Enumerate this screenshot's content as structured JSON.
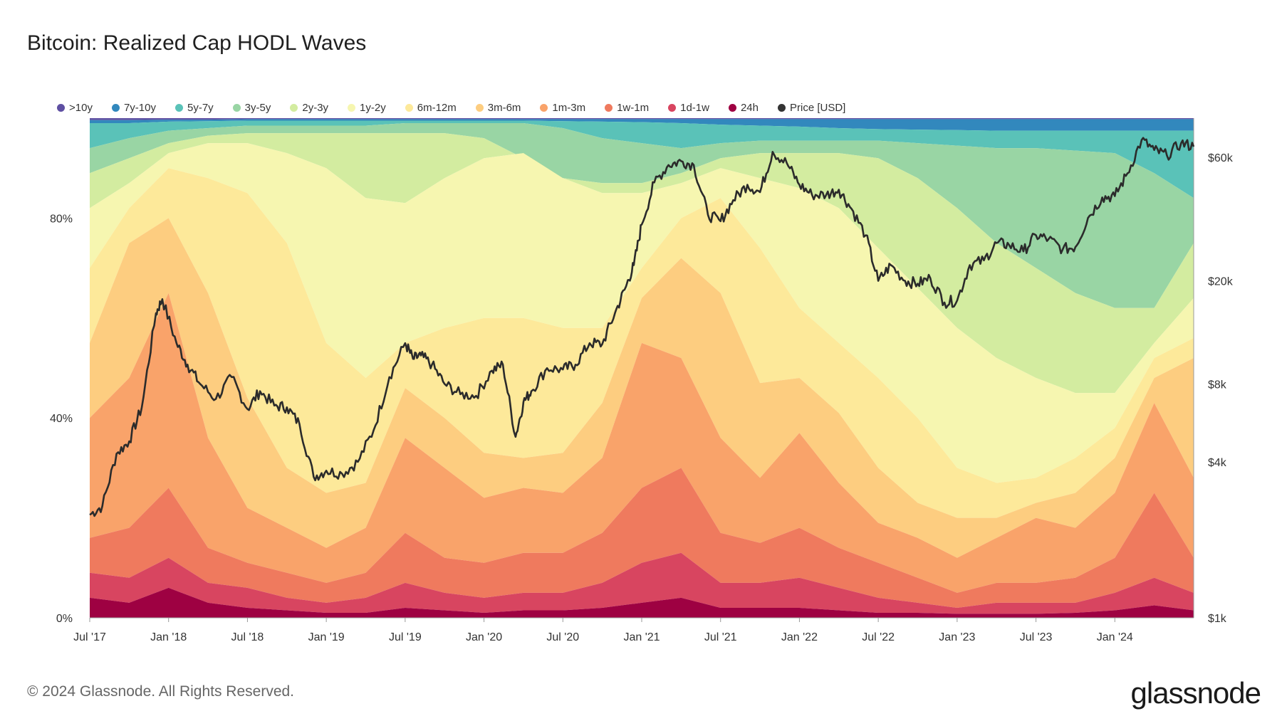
{
  "title": "Bitcoin: Realized Cap HODL Waves",
  "footer": "© 2024 Glassnode. All Rights Reserved.",
  "brand": "glassnode",
  "legend": [
    {
      "label": ">10y",
      "color": "#5e4fa2"
    },
    {
      "label": "7y-10y",
      "color": "#3288bd"
    },
    {
      "label": "5y-7y",
      "color": "#5ac2b8"
    },
    {
      "label": "3y-5y",
      "color": "#99d5a4"
    },
    {
      "label": "2y-3y",
      "color": "#d3eca0"
    },
    {
      "label": "1y-2y",
      "color": "#f6f6b0"
    },
    {
      "label": "6m-12m",
      "color": "#fde99a"
    },
    {
      "label": "3m-6m",
      "color": "#fdcd80"
    },
    {
      "label": "1m-3m",
      "color": "#f9a36a"
    },
    {
      "label": "1w-1m",
      "color": "#ef7a5e"
    },
    {
      "label": "1d-1w",
      "color": "#d84560"
    },
    {
      "label": "24h",
      "color": "#9e0142"
    },
    {
      "label": "Price [USD]",
      "color": "#333333"
    }
  ],
  "chart_data": {
    "type": "area",
    "stacked": true,
    "title": "Bitcoin: Realized Cap HODL Waves",
    "x_ticks": [
      "Jul '17",
      "Jan '18",
      "Jul '18",
      "Jan '19",
      "Jul '19",
      "Jan '20",
      "Jul '20",
      "Jan '21",
      "Jul '21",
      "Jan '22",
      "Jul '22",
      "Jan '23",
      "Jul '23",
      "Jan '24"
    ],
    "y_left_ticks": [
      "0%",
      "40%",
      "80%"
    ],
    "y_left_range": [
      0,
      100
    ],
    "y_right_ticks": [
      "$1k",
      "$4k",
      "$8k",
      "$20k",
      "$60k"
    ],
    "y_right_tick_values": [
      1000,
      4000,
      8000,
      20000,
      60000
    ],
    "y_right_scale": "log",
    "x_start": 2017.5,
    "x_end": 2024.5,
    "legend_position": "top-left",
    "series_order_bottom_to_top": [
      "24h",
      "1d-1w",
      "1w-1m",
      "1m-3m",
      "3m-6m",
      "6m-12m",
      "1y-2y",
      "2y-3y",
      "3y-5y",
      "5y-7y",
      "7y-10y",
      ">10y"
    ],
    "x": [
      2017.5,
      2017.75,
      2018.0,
      2018.25,
      2018.5,
      2018.75,
      2019.0,
      2019.25,
      2019.5,
      2019.75,
      2020.0,
      2020.25,
      2020.5,
      2020.75,
      2021.0,
      2021.25,
      2021.5,
      2021.75,
      2022.0,
      2022.25,
      2022.5,
      2022.75,
      2023.0,
      2023.25,
      2023.5,
      2023.75,
      2024.0,
      2024.25,
      2024.5
    ],
    "cumulative_percent": [
      {
        "name": "24h",
        "values": [
          4,
          3,
          6,
          3,
          2,
          1.5,
          1,
          1,
          2,
          1.5,
          1,
          1.5,
          1.5,
          2,
          3,
          4,
          2,
          2,
          2,
          1.5,
          1,
          1,
          0.8,
          0.8,
          0.8,
          1,
          1.5,
          2.5,
          1.5
        ]
      },
      {
        "name": "1d-1w",
        "values": [
          9,
          8,
          12,
          7,
          6,
          4,
          3,
          4,
          7,
          5,
          4,
          5,
          5,
          7,
          11,
          13,
          7,
          7,
          8,
          6,
          4,
          3,
          2,
          3,
          3,
          3,
          5,
          8,
          5
        ]
      },
      {
        "name": "1w-1m",
        "values": [
          16,
          18,
          26,
          14,
          11,
          9,
          7,
          9,
          17,
          12,
          11,
          13,
          13,
          17,
          26,
          30,
          17,
          15,
          18,
          14,
          11,
          8,
          5,
          7,
          7,
          8,
          12,
          25,
          12
        ]
      },
      {
        "name": "1m-3m",
        "values": [
          40,
          48,
          65,
          36,
          22,
          18,
          14,
          18,
          36,
          30,
          24,
          26,
          25,
          32,
          55,
          52,
          36,
          28,
          37,
          27,
          19,
          16,
          12,
          16,
          20,
          18,
          25,
          43,
          28
        ]
      },
      {
        "name": "3m-6m",
        "values": [
          55,
          75,
          80,
          65,
          44,
          30,
          25,
          27,
          46,
          40,
          33,
          32,
          33,
          43,
          64,
          72,
          65,
          47,
          48,
          41,
          30,
          23,
          20,
          20,
          23,
          25,
          32,
          48,
          52
        ]
      },
      {
        "name": "6m-12m",
        "values": [
          70,
          82,
          90,
          88,
          85,
          75,
          55,
          48,
          55,
          58,
          60,
          60,
          58,
          58,
          70,
          80,
          84,
          74,
          62,
          55,
          48,
          40,
          30,
          27,
          28,
          32,
          38,
          52,
          56
        ]
      },
      {
        "name": "1y-2y",
        "values": [
          82,
          87,
          93,
          95,
          95,
          93,
          90,
          84,
          83,
          88,
          92,
          93,
          88,
          85,
          85,
          87,
          90,
          88,
          86,
          82,
          74,
          66,
          58,
          52,
          48,
          45,
          45,
          55,
          64
        ]
      },
      {
        "name": "2y-3y",
        "values": [
          89,
          92,
          95,
          96.5,
          97,
          97,
          97,
          97,
          97,
          97,
          96,
          92,
          88,
          87,
          87,
          89,
          92,
          93,
          93,
          93,
          92,
          88,
          82,
          75,
          70,
          65,
          62,
          62,
          75
        ]
      },
      {
        "name": "3y-5y",
        "values": [
          94,
          96,
          97.5,
          98,
          98.5,
          98.5,
          98.5,
          98.5,
          99,
          99,
          99,
          99,
          98,
          96,
          95,
          94,
          95,
          95.5,
          95.5,
          95.5,
          95.5,
          95,
          94.5,
          94,
          94,
          93.5,
          93,
          89,
          84
        ]
      },
      {
        "name": "5y-7y",
        "values": [
          99,
          99,
          99.3,
          99.4,
          99.5,
          99.5,
          99.5,
          99.5,
          99.5,
          99.5,
          99.5,
          99.5,
          99.4,
          99.3,
          99.2,
          99,
          98.7,
          98.5,
          98.3,
          98,
          97.8,
          97.7,
          97.6,
          97.5,
          97.5,
          97.5,
          97.5,
          97.5,
          97.5
        ]
      },
      {
        "name": "7y-10y",
        "values": [
          99.6,
          99.6,
          99.7,
          99.7,
          99.8,
          99.8,
          99.8,
          99.8,
          99.8,
          99.8,
          99.8,
          99.8,
          99.8,
          99.8,
          99.8,
          99.8,
          99.8,
          99.8,
          99.8,
          99.8,
          99.8,
          99.8,
          99.8,
          99.8,
          99.8,
          99.8,
          99.8,
          99.8,
          99.8
        ]
      },
      {
        "name": ">10y",
        "values": [
          100,
          100,
          100,
          100,
          100,
          100,
          100,
          100,
          100,
          100,
          100,
          100,
          100,
          100,
          100,
          100,
          100,
          100,
          100,
          100,
          100,
          100,
          100,
          100,
          100,
          100,
          100,
          100,
          100
        ]
      }
    ],
    "price_series": {
      "name": "Price [USD]",
      "x": [
        2017.5,
        2017.58,
        2017.67,
        2017.75,
        2017.83,
        2017.92,
        2017.96,
        2018.05,
        2018.12,
        2018.2,
        2018.3,
        2018.4,
        2018.5,
        2018.58,
        2018.67,
        2018.75,
        2018.83,
        2018.92,
        2019.0,
        2019.1,
        2019.2,
        2019.3,
        2019.4,
        2019.5,
        2019.55,
        2019.6,
        2019.67,
        2019.75,
        2019.85,
        2019.95,
        2020.05,
        2020.12,
        2020.2,
        2020.25,
        2020.3,
        2020.4,
        2020.5,
        2020.58,
        2020.67,
        2020.75,
        2020.83,
        2020.9,
        2020.95,
        2021.0,
        2021.08,
        2021.17,
        2021.25,
        2021.33,
        2021.42,
        2021.5,
        2021.58,
        2021.67,
        2021.75,
        2021.83,
        2021.92,
        2022.0,
        2022.08,
        2022.17,
        2022.25,
        2022.33,
        2022.42,
        2022.5,
        2022.58,
        2022.67,
        2022.75,
        2022.83,
        2022.92,
        2023.0,
        2023.08,
        2023.17,
        2023.25,
        2023.33,
        2023.42,
        2023.5,
        2023.58,
        2023.67,
        2023.75,
        2023.83,
        2023.92,
        2024.0,
        2024.08,
        2024.17,
        2024.25,
        2024.33,
        2024.42,
        2024.5
      ],
      "y": [
        2500,
        2700,
        4300,
        4800,
        6500,
        15000,
        17000,
        11500,
        9500,
        8000,
        7000,
        8500,
        6400,
        7500,
        6600,
        6500,
        5600,
        3500,
        3700,
        3600,
        4000,
        5300,
        8500,
        11500,
        10000,
        10300,
        9500,
        8000,
        7300,
        7200,
        9000,
        9500,
        5000,
        6800,
        7500,
        9200,
        9100,
        9500,
        11500,
        11400,
        15000,
        19000,
        23000,
        33000,
        48000,
        56000,
        58000,
        56000,
        36000,
        34000,
        41000,
        47000,
        44000,
        63000,
        57000,
        47000,
        43000,
        43000,
        45000,
        38000,
        30000,
        20000,
        23000,
        20000,
        19500,
        20500,
        16500,
        16800,
        23000,
        24000,
        28000,
        27500,
        26000,
        30000,
        29000,
        26500,
        27000,
        35000,
        42000,
        42500,
        52000,
        70000,
        64000,
        61000,
        68000,
        66000
      ]
    }
  }
}
